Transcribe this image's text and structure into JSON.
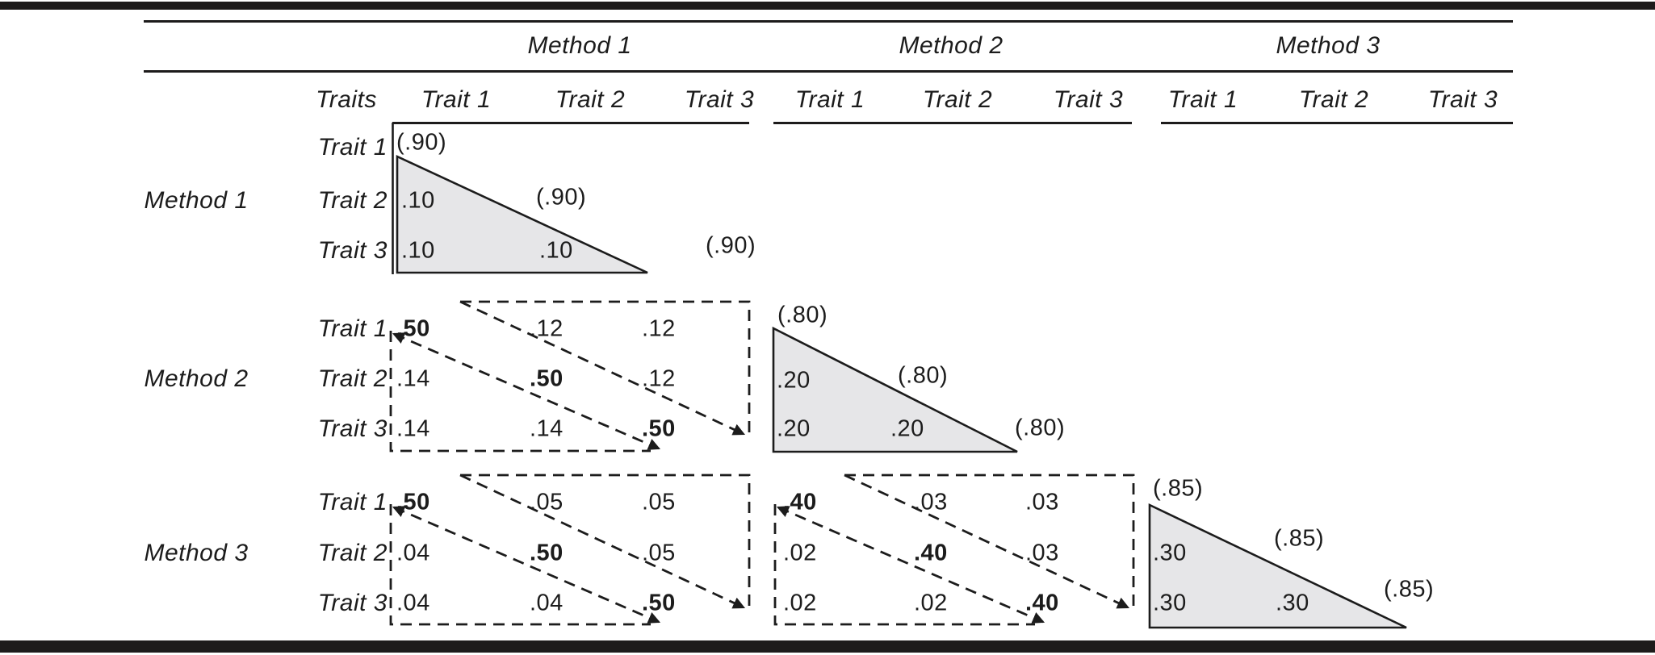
{
  "figure_name": "multitrait-multimethod-matrix",
  "header": {
    "method_column_headers": [
      "Method 1",
      "Method 2",
      "Method 3"
    ],
    "traits_label": "Traits",
    "trait_column_headers": [
      "Trait 1",
      "Trait 2",
      "Trait 3"
    ]
  },
  "row_groups": [
    {
      "method_label": "Method 1",
      "trait_row_labels": [
        "Trait 1",
        "Trait 2",
        "Trait 3"
      ]
    },
    {
      "method_label": "Method 2",
      "trait_row_labels": [
        "Trait 1",
        "Trait 2",
        "Trait 3"
      ]
    },
    {
      "method_label": "Method 3",
      "trait_row_labels": [
        "Trait 1",
        "Trait 2",
        "Trait 3"
      ]
    }
  ],
  "blocks": [
    {
      "id": "method1-method1",
      "kind": "monomethod-shaded-triangle",
      "cells": [
        {
          "value": "(.90)",
          "role": "reliability-diagonal"
        },
        {
          "value": ".10",
          "role": "heterotrait-monomethod"
        },
        {
          "value": "(.90)",
          "role": "reliability-diagonal"
        },
        {
          "value": ".10",
          "role": "heterotrait-monomethod"
        },
        {
          "value": ".10",
          "role": "heterotrait-monomethod"
        },
        {
          "value": "(.90)",
          "role": "reliability-diagonal"
        }
      ]
    },
    {
      "id": "method2-method1",
      "kind": "heteromethod-dashed-triangles",
      "cells": [
        {
          "value": ".50",
          "bold": true,
          "role": "validity-diagonal"
        },
        {
          "value": ".12",
          "role": "heterotrait-heteromethod"
        },
        {
          "value": ".12",
          "role": "heterotrait-heteromethod"
        },
        {
          "value": ".14",
          "role": "heterotrait-heteromethod"
        },
        {
          "value": ".50",
          "bold": true,
          "role": "validity-diagonal"
        },
        {
          "value": ".12",
          "role": "heterotrait-heteromethod"
        },
        {
          "value": ".14",
          "role": "heterotrait-heteromethod"
        },
        {
          "value": ".14",
          "role": "heterotrait-heteromethod"
        },
        {
          "value": ".50",
          "bold": true,
          "role": "validity-diagonal"
        }
      ]
    },
    {
      "id": "method2-method2",
      "kind": "monomethod-shaded-triangle",
      "cells": [
        {
          "value": "(.80)",
          "role": "reliability-diagonal"
        },
        {
          "value": ".20",
          "role": "heterotrait-monomethod"
        },
        {
          "value": "(.80)",
          "role": "reliability-diagonal"
        },
        {
          "value": ".20",
          "role": "heterotrait-monomethod"
        },
        {
          "value": ".20",
          "role": "heterotrait-monomethod"
        },
        {
          "value": "(.80)",
          "role": "reliability-diagonal"
        }
      ]
    },
    {
      "id": "method3-method1",
      "kind": "heteromethod-dashed-triangles",
      "cells": [
        {
          "value": ".50",
          "bold": true,
          "role": "validity-diagonal"
        },
        {
          "value": ".05",
          "role": "heterotrait-heteromethod"
        },
        {
          "value": ".05",
          "role": "heterotrait-heteromethod"
        },
        {
          "value": ".04",
          "role": "heterotrait-heteromethod"
        },
        {
          "value": ".50",
          "bold": true,
          "role": "validity-diagonal"
        },
        {
          "value": ".05",
          "role": "heterotrait-heteromethod"
        },
        {
          "value": ".04",
          "role": "heterotrait-heteromethod"
        },
        {
          "value": ".04",
          "role": "heterotrait-heteromethod"
        },
        {
          "value": ".50",
          "bold": true,
          "role": "validity-diagonal"
        }
      ]
    },
    {
      "id": "method3-method2",
      "kind": "heteromethod-dashed-triangles",
      "cells": [
        {
          "value": ".40",
          "bold": true,
          "role": "validity-diagonal"
        },
        {
          "value": ".03",
          "role": "heterotrait-heteromethod"
        },
        {
          "value": ".03",
          "role": "heterotrait-heteromethod"
        },
        {
          "value": ".02",
          "role": "heterotrait-heteromethod"
        },
        {
          "value": ".40",
          "bold": true,
          "role": "validity-diagonal"
        },
        {
          "value": ".03",
          "role": "heterotrait-heteromethod"
        },
        {
          "value": ".02",
          "role": "heterotrait-heteromethod"
        },
        {
          "value": ".02",
          "role": "heterotrait-heteromethod"
        },
        {
          "value": ".40",
          "bold": true,
          "role": "validity-diagonal"
        }
      ]
    },
    {
      "id": "method3-method3",
      "kind": "monomethod-shaded-triangle",
      "cells": [
        {
          "value": "(.85)",
          "role": "reliability-diagonal"
        },
        {
          "value": ".30",
          "role": "heterotrait-monomethod"
        },
        {
          "value": "(.85)",
          "role": "reliability-diagonal"
        },
        {
          "value": ".30",
          "role": "heterotrait-monomethod"
        },
        {
          "value": ".30",
          "role": "heterotrait-monomethod"
        },
        {
          "value": "(.85)",
          "role": "reliability-diagonal"
        }
      ]
    }
  ],
  "colors": {
    "background": "#ffffff",
    "text": "#1c1c1c",
    "rule": "#1d1b1b",
    "triangle_fill": "#e6e6e8"
  }
}
